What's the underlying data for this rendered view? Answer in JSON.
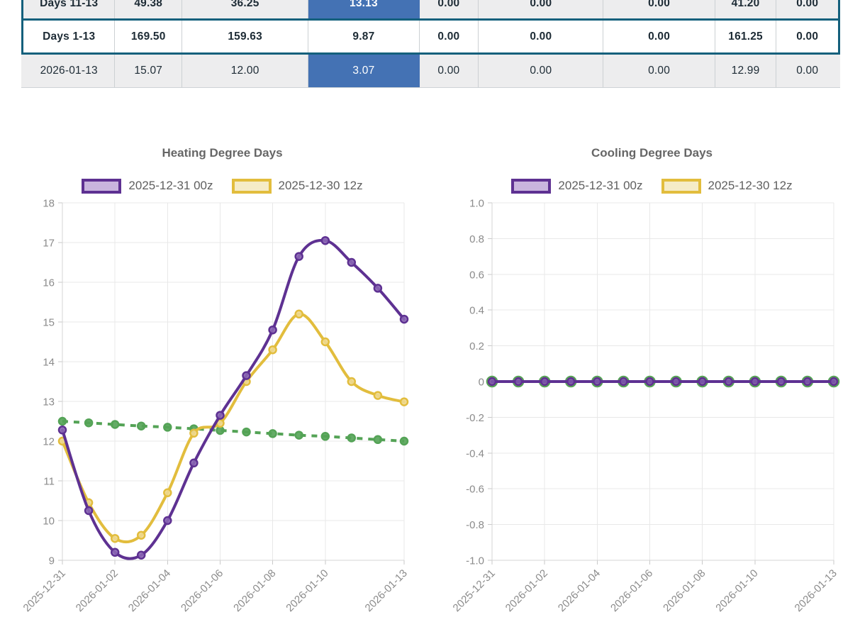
{
  "table": {
    "outline_color": "#14607c",
    "highlight_color": "#4472b4",
    "rows": [
      {
        "label": "Days 11-13",
        "values": [
          "49.38",
          "36.25",
          "13.13",
          "0.00",
          "0.00",
          "0.00",
          "41.20",
          "0.00"
        ]
      },
      {
        "label": "Days 1-13",
        "values": [
          "169.50",
          "159.63",
          "9.87",
          "0.00",
          "0.00",
          "0.00",
          "161.25",
          "0.00"
        ]
      },
      {
        "label": "2026-01-13",
        "values": [
          "15.07",
          "12.00",
          "3.07",
          "0.00",
          "0.00",
          "0.00",
          "12.99",
          "0.00"
        ]
      }
    ]
  },
  "chart_data": [
    {
      "type": "line",
      "title": "Heating Degree Days",
      "xlabel": "",
      "ylabel": "",
      "x": [
        "2025-12-31",
        "2026-01-01",
        "2026-01-02",
        "2026-01-03",
        "2026-01-04",
        "2026-01-05",
        "2026-01-06",
        "2026-01-07",
        "2026-01-08",
        "2026-01-09",
        "2026-01-10",
        "2026-01-11",
        "2026-01-12",
        "2026-01-13"
      ],
      "x_tick_indices": [
        0,
        2,
        4,
        6,
        8,
        10,
        13
      ],
      "ylim": [
        9,
        18
      ],
      "ytick_step": 1,
      "y_format": "int",
      "grid": true,
      "legend_position": "top",
      "series": [
        {
          "name": "2025-12-31 00z",
          "color": "#5e3192",
          "point_fill": "#8a66b4",
          "legend_fill": "#c9b5de",
          "point_radius": 5,
          "values": [
            12.28,
            10.25,
            9.2,
            9.13,
            10.0,
            11.45,
            12.65,
            13.65,
            14.8,
            16.65,
            17.05,
            16.5,
            15.85,
            15.07
          ]
        },
        {
          "name": "2025-12-30 12z",
          "color": "#e2bd3d",
          "point_fill": "#eed88f",
          "legend_fill": "#f5ecc8",
          "point_radius": 5,
          "values": [
            12.0,
            10.45,
            9.55,
            9.63,
            10.7,
            12.2,
            12.45,
            13.5,
            14.3,
            15.2,
            14.5,
            13.5,
            13.15,
            12.99
          ]
        },
        {
          "name": "",
          "in_legend": false,
          "color": "#54a356",
          "point_fill": "#54a356",
          "dash": [
            8,
            8
          ],
          "point_radius": 5,
          "values": [
            12.5,
            12.46,
            12.42,
            12.38,
            12.35,
            12.31,
            12.27,
            12.23,
            12.19,
            12.15,
            12.12,
            12.08,
            12.04,
            12.0
          ]
        }
      ]
    },
    {
      "type": "line",
      "title": "Cooling Degree Days",
      "xlabel": "",
      "ylabel": "",
      "x": [
        "2025-12-31",
        "2026-01-01",
        "2026-01-02",
        "2026-01-03",
        "2026-01-04",
        "2026-01-05",
        "2026-01-06",
        "2026-01-07",
        "2026-01-08",
        "2026-01-09",
        "2026-01-10",
        "2026-01-11",
        "2026-01-12",
        "2026-01-13"
      ],
      "x_tick_indices": [
        0,
        2,
        4,
        6,
        8,
        10,
        13
      ],
      "ylim": [
        -1.0,
        1.0
      ],
      "ytick_step": 0.2,
      "y_format": "dec1",
      "grid": true,
      "legend_position": "top",
      "series": [
        {
          "name": "2025-12-31 00z",
          "color": "#5e3192",
          "point_fill": "#7a57a8",
          "legend_fill": "#c9b5de",
          "point_radius": 5,
          "values": [
            0,
            0,
            0,
            0,
            0,
            0,
            0,
            0,
            0,
            0,
            0,
            0,
            0,
            0
          ]
        },
        {
          "name": "2025-12-30 12z",
          "color": "#e2bd3d",
          "point_fill": "#eed88f",
          "legend_fill": "#f5ecc8",
          "point_radius": 5,
          "values": [
            0,
            0,
            0,
            0,
            0,
            0,
            0,
            0,
            0,
            0,
            0,
            0,
            0,
            0
          ]
        },
        {
          "name": "",
          "in_legend": false,
          "color": "#54a356",
          "point_fill": "#54a356",
          "dash": [
            8,
            8
          ],
          "point_radius": 7,
          "values": [
            0,
            0,
            0,
            0,
            0,
            0,
            0,
            0,
            0,
            0,
            0,
            0,
            0,
            0
          ]
        }
      ]
    }
  ]
}
